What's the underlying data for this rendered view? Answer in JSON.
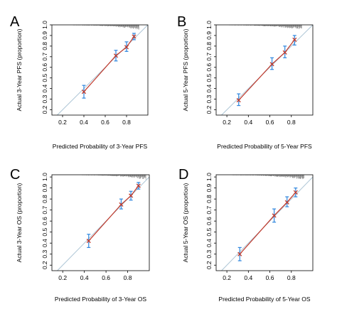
{
  "chart_data": [
    {
      "panel_letter": "A",
      "type": "scatter",
      "xlabel": "Predicted Probability of 3-Year PFS",
      "ylabel": "Actual 3-Year PFS (proportion)",
      "xlim": [
        0.1,
        1.0
      ],
      "ylim": [
        0.15,
        1.0
      ],
      "x_ticks": [
        "0.2",
        "0.4",
        "0.6",
        "0.8"
      ],
      "y_ticks": [
        "0.2",
        "0.3",
        "0.4",
        "0.5",
        "0.6",
        "0.7",
        "0.8",
        "0.9",
        "1.0"
      ],
      "x_tick_values": [
        0.2,
        0.4,
        0.6,
        0.8
      ],
      "y_tick_values": [
        0.2,
        0.3,
        0.4,
        0.5,
        0.6,
        0.7,
        0.8,
        0.9,
        1.0
      ],
      "reference_line": "ideal diagonal",
      "points": [
        {
          "x": 0.4,
          "y": 0.37,
          "lo": 0.31,
          "hi": 0.43
        },
        {
          "x": 0.7,
          "y": 0.71,
          "lo": 0.66,
          "hi": 0.76
        },
        {
          "x": 0.8,
          "y": 0.79,
          "lo": 0.75,
          "hi": 0.84
        },
        {
          "x": 0.87,
          "y": 0.89,
          "lo": 0.86,
          "hi": 0.92
        }
      ],
      "rug_range": [
        0.3,
        0.92
      ]
    },
    {
      "panel_letter": "B",
      "type": "scatter",
      "xlabel": "Predicted Probability of 5-Year PFS",
      "ylabel": "Actual 5-Year PFS (proportion)",
      "xlim": [
        0.1,
        1.0
      ],
      "ylim": [
        0.15,
        1.0
      ],
      "x_ticks": [
        "0.2",
        "0.4",
        "0.6",
        "0.8"
      ],
      "y_ticks": [
        "0.2",
        "0.3",
        "0.4",
        "0.5",
        "0.6",
        "0.7",
        "0.8",
        "0.9",
        "1.0"
      ],
      "x_tick_values": [
        0.2,
        0.4,
        0.6,
        0.8
      ],
      "y_tick_values": [
        0.2,
        0.3,
        0.4,
        0.5,
        0.6,
        0.7,
        0.8,
        0.9,
        1.0
      ],
      "reference_line": "ideal diagonal",
      "points": [
        {
          "x": 0.31,
          "y": 0.29,
          "lo": 0.24,
          "hi": 0.35
        },
        {
          "x": 0.62,
          "y": 0.63,
          "lo": 0.58,
          "hi": 0.69
        },
        {
          "x": 0.74,
          "y": 0.74,
          "lo": 0.69,
          "hi": 0.8
        },
        {
          "x": 0.83,
          "y": 0.86,
          "lo": 0.81,
          "hi": 0.9
        }
      ],
      "rug_range": [
        0.22,
        0.9
      ]
    },
    {
      "panel_letter": "C",
      "type": "scatter",
      "xlabel": "Predicted Probability of 3-Year OS",
      "ylabel": "Actual 3-Year OS (proportion)",
      "xlim": [
        0.1,
        1.0
      ],
      "ylim": [
        0.15,
        1.02
      ],
      "x_ticks": [
        "0.2",
        "0.4",
        "0.6",
        "0.8"
      ],
      "y_ticks": [
        "0.2",
        "0.3",
        "0.4",
        "0.5",
        "0.6",
        "0.7",
        "0.8",
        "0.9",
        "1.0"
      ],
      "x_tick_values": [
        0.2,
        0.4,
        0.6,
        0.8
      ],
      "y_tick_values": [
        0.2,
        0.3,
        0.4,
        0.5,
        0.6,
        0.7,
        0.8,
        0.9,
        1.0
      ],
      "reference_line": "ideal diagonal",
      "points": [
        {
          "x": 0.44,
          "y": 0.42,
          "lo": 0.36,
          "hi": 0.48
        },
        {
          "x": 0.74,
          "y": 0.75,
          "lo": 0.71,
          "hi": 0.8
        },
        {
          "x": 0.83,
          "y": 0.83,
          "lo": 0.79,
          "hi": 0.87
        },
        {
          "x": 0.9,
          "y": 0.92,
          "lo": 0.89,
          "hi": 0.95
        }
      ],
      "rug_range": [
        0.38,
        0.97
      ]
    },
    {
      "panel_letter": "D",
      "type": "scatter",
      "xlabel": "Predicted Probability of 5-Year OS",
      "ylabel": "Actual 5-Year OS (proportion)",
      "xlim": [
        0.1,
        1.0
      ],
      "ylim": [
        0.15,
        1.02
      ],
      "x_ticks": [
        "0.2",
        "0.4",
        "0.6",
        "0.8"
      ],
      "y_ticks": [
        "0.2",
        "0.3",
        "0.4",
        "0.5",
        "0.6",
        "0.7",
        "0.8",
        "0.9",
        "1.0"
      ],
      "x_tick_values": [
        0.2,
        0.4,
        0.6,
        0.8
      ],
      "y_tick_values": [
        0.2,
        0.3,
        0.4,
        0.5,
        0.6,
        0.7,
        0.8,
        0.9,
        1.0
      ],
      "reference_line": "ideal diagonal",
      "points": [
        {
          "x": 0.32,
          "y": 0.3,
          "lo": 0.24,
          "hi": 0.36
        },
        {
          "x": 0.64,
          "y": 0.65,
          "lo": 0.59,
          "hi": 0.71
        },
        {
          "x": 0.76,
          "y": 0.77,
          "lo": 0.73,
          "hi": 0.82
        },
        {
          "x": 0.84,
          "y": 0.86,
          "lo": 0.82,
          "hi": 0.9
        }
      ],
      "rug_range": [
        0.25,
        0.92
      ]
    }
  ],
  "colors": {
    "calibration_line": "#c0392b",
    "point_marker": "#c0392b",
    "error_bar": "#2e86de",
    "ideal_line": "#aec6d6",
    "rug": "#888888",
    "axis": "#000000"
  }
}
